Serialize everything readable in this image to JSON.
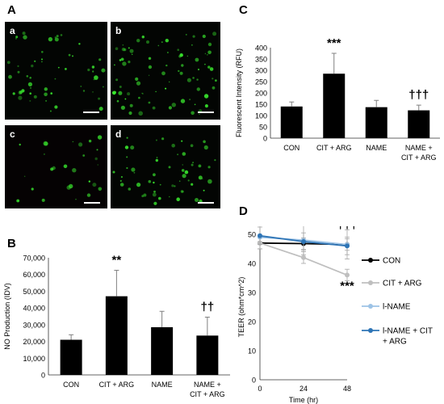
{
  "panels": {
    "A": {
      "letter": "A",
      "images": [
        {
          "label": "a",
          "seed": 7,
          "count": 55
        },
        {
          "label": "b",
          "seed": 13,
          "count": 85
        },
        {
          "label": "c",
          "seed": 29,
          "count": 28
        },
        {
          "label": "d",
          "seed": 41,
          "count": 60
        }
      ]
    },
    "B": {
      "letter": "B"
    },
    "C": {
      "letter": "C"
    },
    "D": {
      "letter": "D"
    }
  },
  "chart_data": [
    {
      "id": "B",
      "type": "bar",
      "ylabel": "NO Production (IDV)",
      "categories": [
        [
          "CON"
        ],
        [
          "CIT + ARG"
        ],
        [
          "NAME"
        ],
        [
          "NAME +",
          "CIT + ARG"
        ]
      ],
      "values": [
        21000,
        47000,
        28500,
        23500
      ],
      "errors": [
        3000,
        15500,
        9500,
        11000
      ],
      "annotations": [
        "",
        "**",
        "",
        "††"
      ],
      "ylim": [
        0,
        70000
      ],
      "ticks": [
        "0",
        "10,000",
        "20,000",
        "30,000",
        "40,000",
        "50,000",
        "60,000",
        "70,000"
      ],
      "tick_values": [
        0,
        10000,
        20000,
        30000,
        40000,
        50000,
        60000,
        70000
      ],
      "bar_color": "#000000"
    },
    {
      "id": "C",
      "type": "bar",
      "ylabel": "Fluorescent Intensity (RFU)",
      "categories": [
        [
          "CON"
        ],
        [
          "CIT + ARG"
        ],
        [
          "NAME"
        ],
        [
          "NAME +",
          "CIT + ARG"
        ]
      ],
      "values": [
        140,
        285,
        137,
        123
      ],
      "errors": [
        20,
        90,
        30,
        23
      ],
      "annotations": [
        "",
        "***",
        "",
        "†††"
      ],
      "ylim": [
        0,
        400
      ],
      "ticks": [
        "0",
        "50",
        "100",
        "150",
        "200",
        "250",
        "300",
        "350",
        "400"
      ],
      "tick_values": [
        0,
        50,
        100,
        150,
        200,
        250,
        300,
        350,
        400
      ],
      "bar_color": "#000000"
    },
    {
      "id": "D",
      "type": "line",
      "xlabel": "Time (hr)",
      "ylabel": "TEER (ohm*cm^2)",
      "x": [
        0,
        24,
        48
      ],
      "xticks": [
        "0",
        "24",
        "48"
      ],
      "xlim": [
        0,
        48
      ],
      "ylim": [
        0,
        50
      ],
      "ticks": [
        "0",
        "10",
        "20",
        "30",
        "40",
        "50"
      ],
      "tick_values": [
        0,
        10,
        20,
        30,
        40,
        50
      ],
      "series": [
        {
          "name": "CON",
          "values": [
            47,
            46.8,
            46.5
          ],
          "errors": [
            2,
            2,
            2
          ],
          "color": "#000000"
        },
        {
          "name": "CIT + ARG",
          "values": [
            47,
            42,
            36
          ],
          "errors": [
            2,
            2,
            2
          ],
          "color": "#bfbfbf"
        },
        {
          "name": "l-NAME",
          "values": [
            49,
            48,
            46.5
          ],
          "errors": [
            4,
            5,
            5
          ],
          "color": "#9dc3e6"
        },
        {
          "name": "l-NAME + CIT + ARG",
          "legend_lines": [
            "l-NAME + CIT",
            "+ ARG"
          ],
          "values": [
            49.5,
            47.5,
            46
          ],
          "errors": [
            3,
            3,
            3
          ],
          "color": "#2e75b6"
        }
      ],
      "annotations": [
        {
          "text": "†††",
          "x": 48,
          "y": 52
        },
        {
          "text": "***",
          "x": 48,
          "y": 31
        }
      ]
    }
  ]
}
